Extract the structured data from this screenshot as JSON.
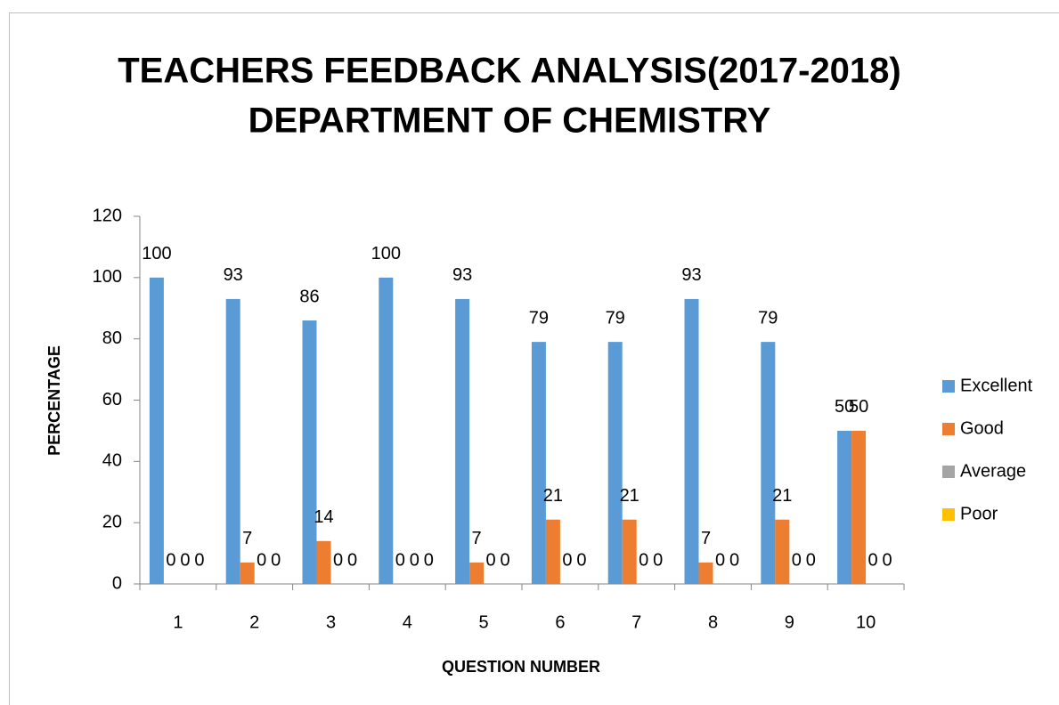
{
  "chart_data": {
    "type": "bar",
    "title": [
      "TEACHERS FEEDBACK ANALYSIS(2017-2018)",
      "DEPARTMENT OF CHEMISTRY"
    ],
    "x_label": "QUESTION NUMBER",
    "y_label": "PERCENTAGE",
    "categories": [
      "1",
      "2",
      "3",
      "4",
      "5",
      "6",
      "7",
      "8",
      "9",
      "10"
    ],
    "series": [
      {
        "name": "Excellent",
        "color": "#5b9bd5",
        "values": [
          100,
          93,
          86,
          100,
          93,
          79,
          79,
          93,
          79,
          50
        ]
      },
      {
        "name": "Good",
        "color": "#ed7d31",
        "values": [
          0,
          7,
          14,
          0,
          7,
          21,
          21,
          7,
          21,
          50
        ]
      },
      {
        "name": "Average",
        "color": "#a5a5a5",
        "values": [
          0,
          0,
          0,
          0,
          0,
          0,
          0,
          0,
          0,
          0
        ]
      },
      {
        "name": "Poor",
        "color": "#ffc000",
        "values": [
          0,
          0,
          0,
          0,
          0,
          0,
          0,
          0,
          0,
          0
        ]
      }
    ],
    "ylim": [
      0,
      120
    ],
    "yticks": [
      0,
      20,
      40,
      60,
      80,
      100,
      120
    ],
    "legend": "right"
  }
}
